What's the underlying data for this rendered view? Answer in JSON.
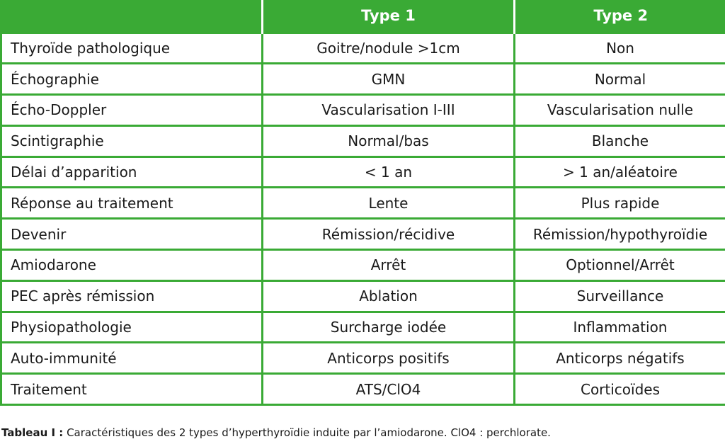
{
  "table": {
    "headers": [
      "",
      "Type 1",
      "Type 2"
    ],
    "rows": [
      [
        "Thyroïde pathologique",
        "Goitre/nodule >1cm",
        "Non"
      ],
      [
        "Échographie",
        "GMN",
        "Normal"
      ],
      [
        "Écho-Doppler",
        "Vascularisation I-III",
        "Vascularisation nulle"
      ],
      [
        "Scintigraphie",
        "Normal/bas",
        "Blanche"
      ],
      [
        "Délai d’apparition",
        "< 1 an",
        "> 1 an/aléatoire"
      ],
      [
        "Réponse au traitement",
        "Lente",
        "Plus rapide"
      ],
      [
        "Devenir",
        "Rémission/récidive",
        "Rémission/hypothyroïdie"
      ],
      [
        "Amiodarone",
        "Arrêt",
        "Optionnel/Arrêt"
      ],
      [
        "PEC après rémission",
        "Ablation",
        "Surveillance"
      ],
      [
        "Physiopathologie",
        "Surcharge iodée",
        "Inflammation"
      ],
      [
        "Auto-immunité",
        "Anticorps positifs",
        "Anticorps négatifs"
      ],
      [
        "Traitement",
        "ATS/ClO4",
        "Corticoïdes"
      ]
    ]
  },
  "caption": {
    "label": "Tableau I :",
    "text": " Caractéristiques des 2 types d’hyperthyroïdie induite par l’amiodarone. ClO4 : perchlorate."
  },
  "colors": {
    "header_bg": "#3aaa35",
    "grid": "#3aaa35",
    "header_text": "#ffffff"
  }
}
